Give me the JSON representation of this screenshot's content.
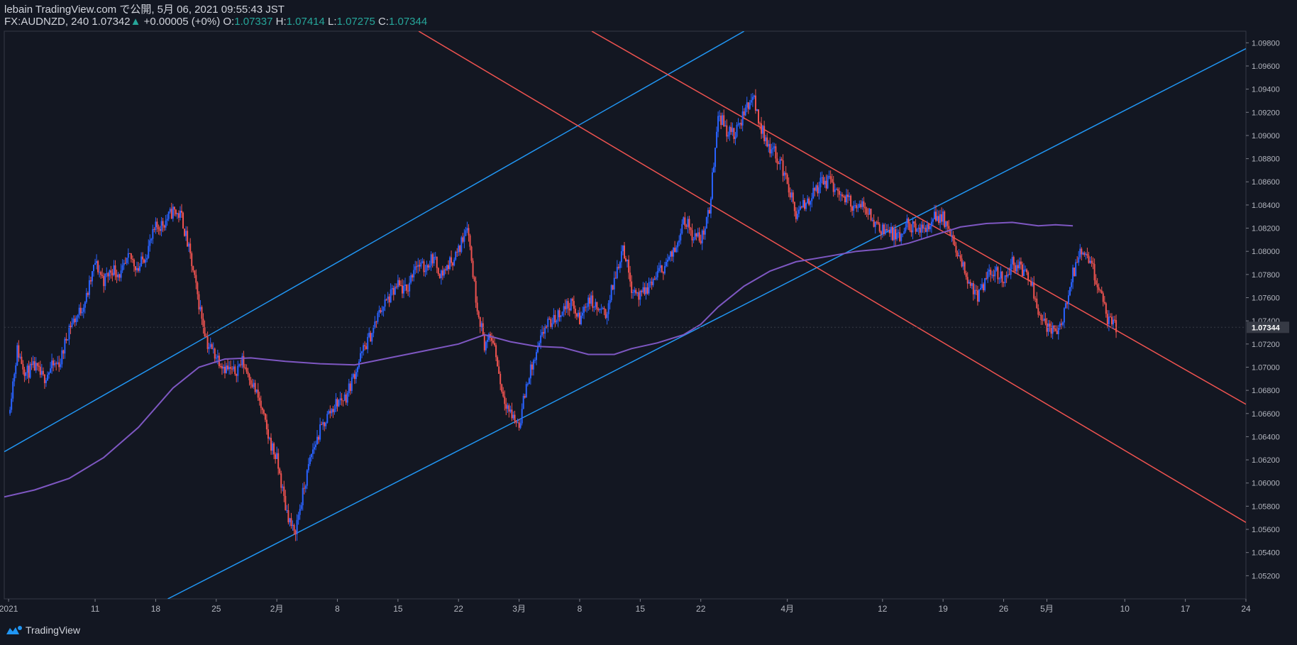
{
  "header": {
    "line1": "lebain TradingView.com で公開, 5月 06, 2021 09:55:43 JST",
    "symbol": "FX:AUDNZD, 240",
    "last": "1.07342",
    "change": "+0.00005 (+0%)",
    "o_label": "O:",
    "o_value": "1.07337",
    "h_label": "H:",
    "h_value": "1.07414",
    "l_label": "L:",
    "l_value": "1.07275",
    "c_label": "C:",
    "c_value": "1.07344"
  },
  "footer": {
    "brand": "TradingView"
  },
  "colors": {
    "background": "#131722",
    "up": "#2962ff",
    "down": "#ef5350",
    "ma": "#7e57c2",
    "trend_blue": "#2196f3",
    "trend_red": "#ef5350",
    "price_tag_bg": "#363a45"
  },
  "chart_data": {
    "type": "candlestick",
    "title": "FX:AUDNZD, 240",
    "price_label": "1.07344",
    "ylim": [
      1.05,
      1.099
    ],
    "y_ticks": [
      "1.05200",
      "1.05400",
      "1.05600",
      "1.05800",
      "1.06000",
      "1.06200",
      "1.06400",
      "1.06600",
      "1.06800",
      "1.07000",
      "1.07200",
      "1.07400",
      "1.07600",
      "1.07800",
      "1.08000",
      "1.08200",
      "1.08400",
      "1.08600",
      "1.08800",
      "1.09000",
      "1.09200",
      "1.09400",
      "1.09600",
      "1.09800"
    ],
    "x_ticks": [
      {
        "label": "2021",
        "day": 0
      },
      {
        "label": "11",
        "day": 10
      },
      {
        "label": "18",
        "day": 17
      },
      {
        "label": "25",
        "day": 24
      },
      {
        "label": "2月",
        "day": 31
      },
      {
        "label": "8",
        "day": 38
      },
      {
        "label": "15",
        "day": 45
      },
      {
        "label": "22",
        "day": 52
      },
      {
        "label": "3月",
        "day": 59
      },
      {
        "label": "8",
        "day": 66
      },
      {
        "label": "15",
        "day": 73
      },
      {
        "label": "22",
        "day": 80
      },
      {
        "label": "4月",
        "day": 90
      },
      {
        "label": "12",
        "day": 101
      },
      {
        "label": "19",
        "day": 108
      },
      {
        "label": "26",
        "day": 115
      },
      {
        "label": "5月",
        "day": 120
      },
      {
        "label": "10",
        "day": 129
      },
      {
        "label": "17",
        "day": 136
      },
      {
        "label": "24",
        "day": 143
      }
    ],
    "xlim_days": [
      -0.5,
      143
    ],
    "price_path": [
      [
        0,
        1.066
      ],
      [
        1,
        1.0715
      ],
      [
        2,
        1.0695
      ],
      [
        3,
        1.07
      ],
      [
        4,
        1.069
      ],
      [
        5,
        1.07
      ],
      [
        6,
        1.0705
      ],
      [
        7,
        1.0735
      ],
      [
        8,
        1.0745
      ],
      [
        9,
        1.076
      ],
      [
        10,
        1.079
      ],
      [
        11,
        1.0775
      ],
      [
        12,
        1.0785
      ],
      [
        13,
        1.078
      ],
      [
        14,
        1.0795
      ],
      [
        15,
        1.0785
      ],
      [
        16,
        1.08
      ],
      [
        17,
        1.082
      ],
      [
        18,
        1.0825
      ],
      [
        19,
        1.0835
      ],
      [
        20,
        1.083
      ],
      [
        21,
        1.0795
      ],
      [
        22,
        1.0755
      ],
      [
        23,
        1.072
      ],
      [
        24,
        1.071
      ],
      [
        25,
        1.07
      ],
      [
        26,
        1.0695
      ],
      [
        27,
        1.0705
      ],
      [
        28,
        1.069
      ],
      [
        29,
        1.067
      ],
      [
        30,
        1.064
      ],
      [
        31,
        1.062
      ],
      [
        32,
        1.058
      ],
      [
        33,
        1.0555
      ],
      [
        34,
        1.059
      ],
      [
        35,
        1.0625
      ],
      [
        36,
        1.0645
      ],
      [
        37,
        1.066
      ],
      [
        38,
        1.067
      ],
      [
        39,
        1.0675
      ],
      [
        40,
        1.0695
      ],
      [
        41,
        1.0715
      ],
      [
        42,
        1.073
      ],
      [
        43,
        1.075
      ],
      [
        44,
        1.076
      ],
      [
        45,
        1.077
      ],
      [
        46,
        1.0765
      ],
      [
        47,
        1.079
      ],
      [
        48,
        1.0785
      ],
      [
        49,
        1.0795
      ],
      [
        50,
        1.078
      ],
      [
        51,
        1.079
      ],
      [
        52,
        1.08
      ],
      [
        53,
        1.0825
      ],
      [
        54,
        1.076
      ],
      [
        55,
        1.072
      ],
      [
        56,
        1.0725
      ],
      [
        57,
        1.068
      ],
      [
        58,
        1.066
      ],
      [
        59,
        1.065
      ],
      [
        60,
        1.069
      ],
      [
        61,
        1.071
      ],
      [
        62,
        1.0735
      ],
      [
        63,
        1.074
      ],
      [
        64,
        1.075
      ],
      [
        65,
        1.0755
      ],
      [
        66,
        1.074
      ],
      [
        67,
        1.076
      ],
      [
        68,
        1.075
      ],
      [
        69,
        1.0745
      ],
      [
        70,
        1.0775
      ],
      [
        71,
        1.0805
      ],
      [
        72,
        1.077
      ],
      [
        73,
        1.076
      ],
      [
        74,
        1.077
      ],
      [
        75,
        1.078
      ],
      [
        76,
        1.079
      ],
      [
        77,
        1.08
      ],
      [
        78,
        1.083
      ],
      [
        79,
        1.0815
      ],
      [
        80,
        1.081
      ],
      [
        81,
        1.0835
      ],
      [
        82,
        1.092
      ],
      [
        83,
        1.0905
      ],
      [
        84,
        1.09
      ],
      [
        85,
        1.092
      ],
      [
        86,
        1.0935
      ],
      [
        87,
        1.0905
      ],
      [
        88,
        1.089
      ],
      [
        89,
        1.088
      ],
      [
        90,
        1.086
      ],
      [
        91,
        1.083
      ],
      [
        92,
        1.084
      ],
      [
        93,
        1.085
      ],
      [
        94,
        1.086
      ],
      [
        95,
        1.086
      ],
      [
        96,
        1.085
      ],
      [
        97,
        1.0845
      ],
      [
        98,
        1.0835
      ],
      [
        99,
        1.084
      ],
      [
        100,
        1.0825
      ],
      [
        101,
        1.082
      ],
      [
        102,
        1.0815
      ],
      [
        103,
        1.081
      ],
      [
        104,
        1.0825
      ],
      [
        105,
        1.0815
      ],
      [
        106,
        1.082
      ],
      [
        107,
        1.083
      ],
      [
        108,
        1.083
      ],
      [
        109,
        1.081
      ],
      [
        110,
        1.079
      ],
      [
        111,
        1.0775
      ],
      [
        112,
        1.076
      ],
      [
        113,
        1.0775
      ],
      [
        114,
        1.0785
      ],
      [
        115,
        1.0775
      ],
      [
        116,
        1.079
      ],
      [
        117,
        1.0785
      ],
      [
        118,
        1.078
      ],
      [
        119,
        1.075
      ],
      [
        120,
        1.0735
      ],
      [
        121,
        1.073
      ],
      [
        122,
        1.0745
      ],
      [
        123,
        1.078
      ],
      [
        124,
        1.08
      ],
      [
        125,
        1.079
      ],
      [
        126,
        1.077
      ],
      [
        127,
        1.074
      ],
      [
        128,
        1.0734
      ]
    ],
    "ma_path": [
      [
        -0.5,
        1.0588
      ],
      [
        3,
        1.0594
      ],
      [
        7,
        1.0604
      ],
      [
        11,
        1.0622
      ],
      [
        15,
        1.0648
      ],
      [
        19,
        1.0682
      ],
      [
        22,
        1.07
      ],
      [
        25,
        1.0707
      ],
      [
        28,
        1.0708
      ],
      [
        32,
        1.0705
      ],
      [
        36,
        1.0703
      ],
      [
        40,
        1.0702
      ],
      [
        44,
        1.0708
      ],
      [
        48,
        1.0714
      ],
      [
        52,
        1.072
      ],
      [
        55,
        1.0728
      ],
      [
        58,
        1.0722
      ],
      [
        61,
        1.0718
      ],
      [
        64,
        1.0717
      ],
      [
        67,
        1.0711
      ],
      [
        70,
        1.0711
      ],
      [
        72,
        1.0716
      ],
      [
        75,
        1.0721
      ],
      [
        78,
        1.0728
      ],
      [
        80,
        1.0737
      ],
      [
        82,
        1.0752
      ],
      [
        85,
        1.077
      ],
      [
        88,
        1.0783
      ],
      [
        91,
        1.0791
      ],
      [
        95,
        1.0796
      ],
      [
        98,
        1.08
      ],
      [
        101,
        1.0802
      ],
      [
        104,
        1.0807
      ],
      [
        107,
        1.0814
      ],
      [
        110,
        1.0821
      ],
      [
        113,
        1.0824
      ],
      [
        116,
        1.0825
      ],
      [
        119,
        1.0822
      ],
      [
        121,
        1.0823
      ],
      [
        123,
        1.0822
      ]
    ],
    "trendlines": [
      {
        "color": "blue",
        "points": [
          [
            -0.5,
            1.0627
          ],
          [
            85,
            1.099
          ]
        ]
      },
      {
        "color": "blue",
        "points": [
          [
            18.4,
            1.05
          ],
          [
            143,
            1.0975
          ]
        ]
      },
      {
        "color": "red",
        "points": [
          [
            47.4,
            1.099
          ],
          [
            143,
            1.0566
          ]
        ]
      },
      {
        "color": "red",
        "points": [
          [
            67.4,
            1.099
          ],
          [
            143,
            1.0668
          ]
        ]
      }
    ]
  }
}
